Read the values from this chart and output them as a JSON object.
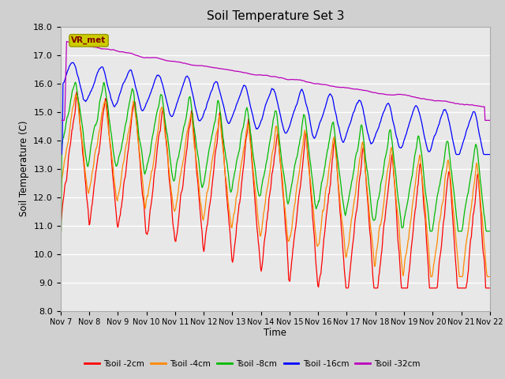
{
  "title": "Soil Temperature Set 3",
  "ylabel": "Soil Temperature (C)",
  "xlabel": "Time",
  "ylim": [
    8.0,
    18.0
  ],
  "yticks": [
    8.0,
    9.0,
    10.0,
    11.0,
    12.0,
    13.0,
    14.0,
    15.0,
    16.0,
    17.0,
    18.0
  ],
  "xtick_labels": [
    "Nov 7",
    "Nov 8",
    "Nov 9",
    "Nov 10",
    "Nov 11",
    "Nov 12",
    "Nov 13",
    "Nov 14",
    "Nov 15",
    "Nov 16",
    "Nov 17",
    "Nov 18",
    "Nov 19",
    "Nov 20",
    "Nov 21",
    "Nov 22"
  ],
  "series_colors": [
    "#ff0000",
    "#ff8800",
    "#00bb00",
    "#0000ff",
    "#bb00bb"
  ],
  "series_labels": [
    "Tsoil -2cm",
    "Tsoil -4cm",
    "Tsoil -8cm",
    "Tsoil -16cm",
    "Tsoil -32cm"
  ],
  "fig_bg_color": "#d0d0d0",
  "plot_bg_color": "#e8e8e8",
  "vr_met_box_color": "#cccc00",
  "vr_met_text_color": "#800000",
  "grid_color": "#ffffff",
  "title_fontsize": 11,
  "n_points": 720
}
